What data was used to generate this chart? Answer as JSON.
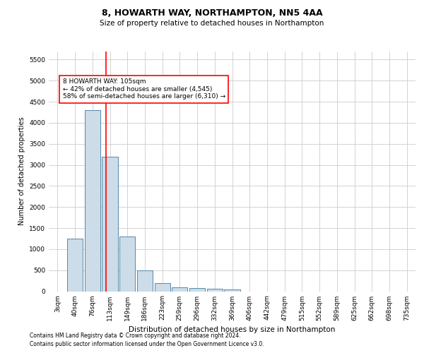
{
  "title": "8, HOWARTH WAY, NORTHAMPTON, NN5 4AA",
  "subtitle": "Size of property relative to detached houses in Northampton",
  "xlabel": "Distribution of detached houses by size in Northampton",
  "ylabel": "Number of detached properties",
  "footnote1": "Contains HM Land Registry data © Crown copyright and database right 2024.",
  "footnote2": "Contains public sector information licensed under the Open Government Licence v3.0.",
  "annotation_line1": "8 HOWARTH WAY: 105sqm",
  "annotation_line2": "← 42% of detached houses are smaller (4,545)",
  "annotation_line3": "58% of semi-detached houses are larger (6,310) →",
  "bin_labels": [
    "3sqm",
    "40sqm",
    "76sqm",
    "113sqm",
    "149sqm",
    "186sqm",
    "223sqm",
    "259sqm",
    "296sqm",
    "332sqm",
    "369sqm",
    "406sqm",
    "442sqm",
    "479sqm",
    "515sqm",
    "552sqm",
    "589sqm",
    "625sqm",
    "662sqm",
    "698sqm",
    "735sqm"
  ],
  "bar_values": [
    0,
    1250,
    4300,
    3200,
    1300,
    500,
    200,
    100,
    75,
    60,
    50,
    0,
    0,
    0,
    0,
    0,
    0,
    0,
    0,
    0,
    0
  ],
  "bar_color": "#ccdce8",
  "bar_edge_color": "#5588aa",
  "ylim": [
    0,
    5700
  ],
  "yticks": [
    0,
    500,
    1000,
    1500,
    2000,
    2500,
    3000,
    3500,
    4000,
    4500,
    5000,
    5500
  ],
  "background_color": "#ffffff",
  "grid_color": "#cccccc",
  "title_fontsize": 9,
  "subtitle_fontsize": 7.5,
  "xlabel_fontsize": 7.5,
  "ylabel_fontsize": 7,
  "tick_fontsize": 6.5,
  "annot_fontsize": 6.5,
  "footnote_fontsize": 5.5
}
